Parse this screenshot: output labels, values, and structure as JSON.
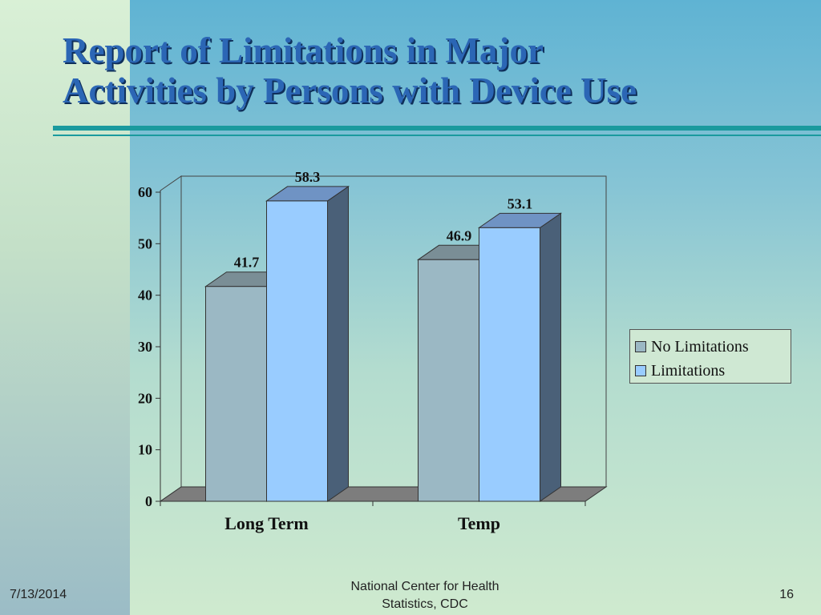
{
  "slide": {
    "title_line1": "Report of  Limitations in Major",
    "title_line2": "Activities by Persons with Device Use"
  },
  "footer": {
    "date": "7/13/2014",
    "source_line1": "National Center for Health",
    "source_line2": "Statistics, CDC",
    "page": "16"
  },
  "colors": {
    "no_limitations": "#9bb8c4",
    "limitations": "#99ccff",
    "floor": "#7d7d7d",
    "title": "#2b66b5",
    "rule": "#1a9a9e"
  },
  "chart_data": {
    "type": "bar",
    "style": "3d-clustered",
    "categories": [
      "Long Term",
      "Temp"
    ],
    "series": [
      {
        "name": "No Limitations",
        "values": [
          41.7,
          46.9
        ]
      },
      {
        "name": "Limitations",
        "values": [
          58.3,
          53.1
        ]
      }
    ],
    "data_labels": [
      [
        "41.7",
        "46.9"
      ],
      [
        "58.3",
        "53.1"
      ]
    ],
    "yticks": [
      0,
      10,
      20,
      30,
      40,
      50,
      60
    ],
    "ylim": [
      0,
      60
    ],
    "grid": false,
    "legend_position": "right",
    "title": "",
    "xlabel": "",
    "ylabel": ""
  }
}
